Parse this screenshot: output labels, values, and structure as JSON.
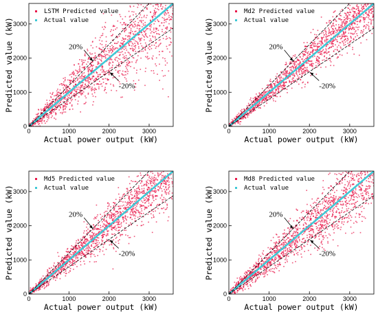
{
  "chart_data": [
    {
      "type": "scatter",
      "title": "",
      "xlabel": "Actual power output (kW)",
      "ylabel": "Predicted value (kW)",
      "xlim": [
        0,
        3600
      ],
      "ylim": [
        0,
        3600
      ],
      "xticks": [
        0,
        1000,
        2000,
        3000
      ],
      "yticks": [
        0,
        1000,
        2000,
        3000
      ],
      "series": [
        {
          "name": "LSTM Predicted value",
          "color": "#e8194b",
          "spread": 0.22,
          "marker": "dot"
        },
        {
          "name": "Actual value",
          "color": "#3ec9d6",
          "marker": "line"
        }
      ],
      "annotations": [
        "20%",
        "-20%"
      ],
      "error_band": [
        1.2,
        0.8
      ]
    },
    {
      "type": "scatter",
      "title": "",
      "xlabel": "Actual power output (kW)",
      "ylabel": "Predicted value (kW)",
      "xlim": [
        0,
        3600
      ],
      "ylim": [
        0,
        3600
      ],
      "xticks": [
        0,
        1000,
        2000,
        3000
      ],
      "yticks": [
        0,
        1000,
        2000,
        3000
      ],
      "series": [
        {
          "name": "Md2 Predicted value",
          "color": "#e8194b",
          "spread": 0.1,
          "marker": "dot"
        },
        {
          "name": "Actual value",
          "color": "#3ec9d6",
          "marker": "line"
        }
      ],
      "annotations": [
        "20%",
        "-20%"
      ],
      "error_band": [
        1.2,
        0.8
      ]
    },
    {
      "type": "scatter",
      "title": "",
      "xlabel": "Actual power output (kW)",
      "ylabel": "Predicted value (kW)",
      "xlim": [
        0,
        3600
      ],
      "ylim": [
        0,
        3600
      ],
      "xticks": [
        0,
        1000,
        2000,
        3000
      ],
      "yticks": [
        0,
        1000,
        2000,
        3000
      ],
      "series": [
        {
          "name": "Md5 Predicted value",
          "color": "#e8194b",
          "spread": 0.13,
          "marker": "dot"
        },
        {
          "name": "Actual value",
          "color": "#3ec9d6",
          "marker": "line"
        }
      ],
      "annotations": [
        "20%",
        "-20%"
      ],
      "error_band": [
        1.2,
        0.8
      ]
    },
    {
      "type": "scatter",
      "title": "",
      "xlabel": "Actual power output (kW)",
      "ylabel": "Predicted value (kW)",
      "xlim": [
        0,
        3600
      ],
      "ylim": [
        0,
        3600
      ],
      "xticks": [
        0,
        1000,
        2000,
        3000
      ],
      "yticks": [
        0,
        1000,
        2000,
        3000
      ],
      "series": [
        {
          "name": "Md8 Predicted value",
          "color": "#e8194b",
          "spread": 0.16,
          "marker": "dot"
        },
        {
          "name": "Actual value",
          "color": "#3ec9d6",
          "marker": "line"
        }
      ],
      "annotations": [
        "20%",
        "-20%"
      ],
      "error_band": [
        1.2,
        0.8
      ]
    }
  ]
}
